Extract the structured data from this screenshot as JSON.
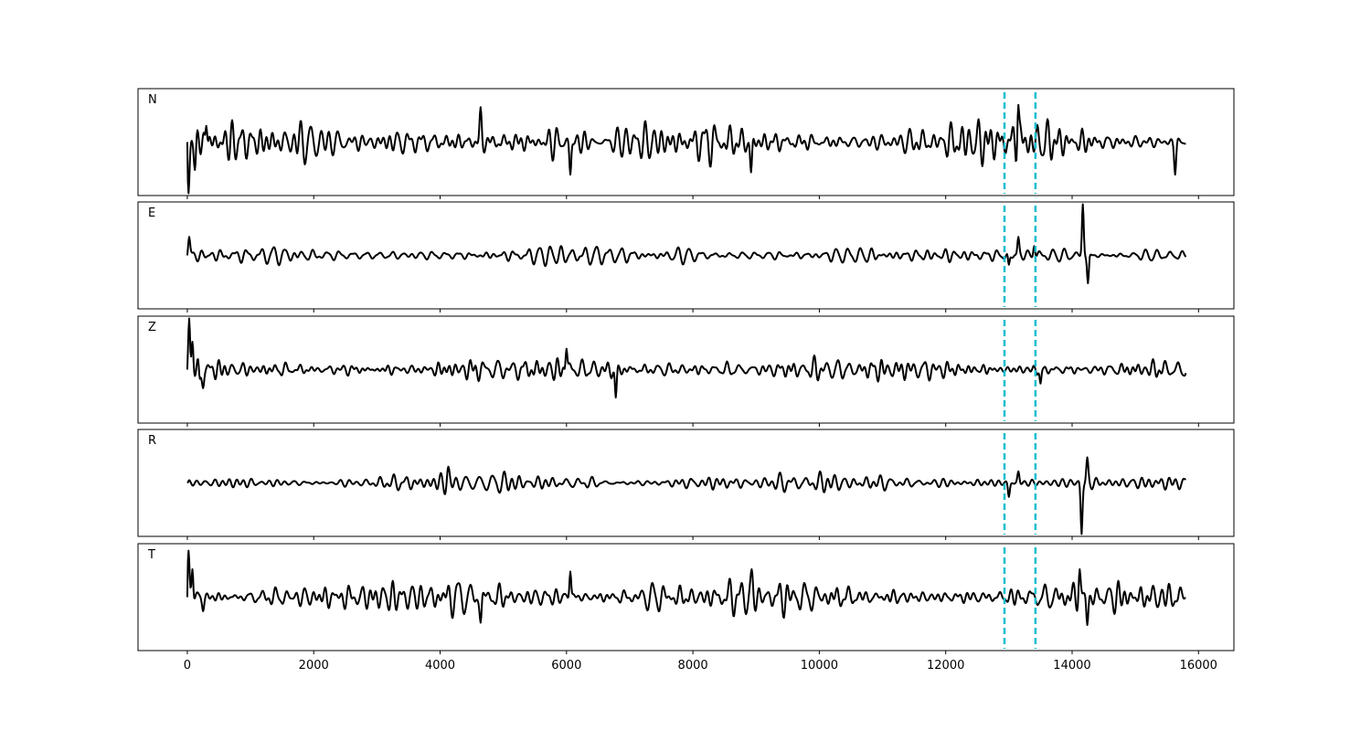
{
  "chart_data": {
    "type": "line",
    "title": "",
    "xlabel": "",
    "ylabel": "",
    "xlim": [
      -780,
      16560
    ],
    "x_ticks": [
      0,
      2000,
      4000,
      6000,
      8000,
      10000,
      12000,
      14000,
      16000
    ],
    "x_tick_labels": [
      "0",
      "2000",
      "4000",
      "6000",
      "8000",
      "10000",
      "12000",
      "14000",
      "16000"
    ],
    "y_axis_ticks": false,
    "grid": false,
    "legend": "none",
    "series_x_range": [
      0,
      15800
    ],
    "vertical_markers": [
      12930,
      13420
    ],
    "marker_color": "#17becf",
    "trace_color": "#000000",
    "panels": [
      {
        "name": "N",
        "baseline": 0.0,
        "noise_amplitude": 0.35,
        "events": [
          {
            "x": 0,
            "value": 0.0
          },
          {
            "x": 20,
            "value": -1.1
          },
          {
            "x": 120,
            "value": -0.6
          },
          {
            "x": 300,
            "value": 0.35
          },
          {
            "x": 4640,
            "value": 0.75
          },
          {
            "x": 6060,
            "value": -0.7
          },
          {
            "x": 8920,
            "value": -0.65
          },
          {
            "x": 13150,
            "value": 0.8
          },
          {
            "x": 15630,
            "value": -0.7
          }
        ]
      },
      {
        "name": "E",
        "baseline": 0.0,
        "noise_amplitude": 0.18,
        "events": [
          {
            "x": 0,
            "value": 0.0
          },
          {
            "x": 30,
            "value": 0.4
          },
          {
            "x": 13000,
            "value": -0.2
          },
          {
            "x": 13150,
            "value": 0.4
          },
          {
            "x": 13400,
            "value": 0.2
          },
          {
            "x": 14170,
            "value": 1.1
          },
          {
            "x": 14250,
            "value": -0.6
          }
        ]
      },
      {
        "name": "Z",
        "baseline": 0.0,
        "noise_amplitude": 0.22,
        "events": [
          {
            "x": 0,
            "value": 0.0
          },
          {
            "x": 30,
            "value": 1.1
          },
          {
            "x": 80,
            "value": 0.6
          },
          {
            "x": 200,
            "value": -0.2
          },
          {
            "x": 250,
            "value": -0.4
          },
          {
            "x": 6000,
            "value": 0.45
          },
          {
            "x": 6780,
            "value": -0.6
          },
          {
            "x": 13500,
            "value": -0.3
          }
        ]
      },
      {
        "name": "R",
        "baseline": 0.0,
        "noise_amplitude": 0.16,
        "events": [
          {
            "x": 0,
            "value": 0.0
          },
          {
            "x": 4130,
            "value": 0.35
          },
          {
            "x": 13000,
            "value": -0.3
          },
          {
            "x": 13150,
            "value": 0.25
          },
          {
            "x": 14150,
            "value": -1.1
          },
          {
            "x": 14240,
            "value": 0.55
          }
        ]
      },
      {
        "name": "T",
        "baseline": 0.0,
        "noise_amplitude": 0.3,
        "events": [
          {
            "x": 0,
            "value": 0.0
          },
          {
            "x": 20,
            "value": 1.0
          },
          {
            "x": 80,
            "value": 0.6
          },
          {
            "x": 250,
            "value": -0.3
          },
          {
            "x": 4640,
            "value": -0.55
          },
          {
            "x": 6060,
            "value": 0.55
          },
          {
            "x": 8930,
            "value": 0.6
          },
          {
            "x": 14120,
            "value": 0.6
          },
          {
            "x": 14240,
            "value": -0.6
          }
        ]
      }
    ]
  }
}
